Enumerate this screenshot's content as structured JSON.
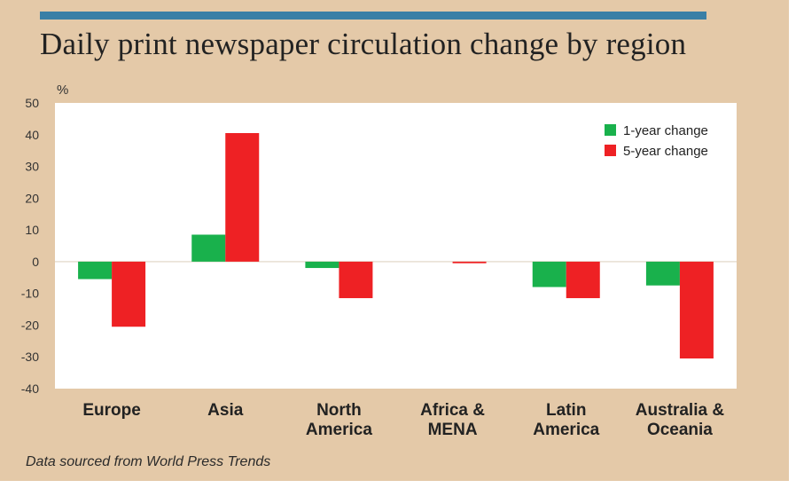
{
  "header": {
    "title": "Daily print newspaper circulation change by region"
  },
  "footer": {
    "source": "Data sourced from World Press Trends"
  },
  "colors": {
    "background": "#e4c9a8",
    "accent_bar": "#3a7fa6",
    "plot_background": "#ffffff",
    "series_1": "#19b14c",
    "series_2": "#ee2124"
  },
  "chart_data": {
    "type": "bar",
    "title": "Daily print newspaper circulation change by region",
    "xlabel": "",
    "ylabel": "%",
    "ylim": [
      -40,
      50
    ],
    "yticks": [
      50,
      40,
      30,
      20,
      10,
      0,
      -10,
      -20,
      -30,
      -40
    ],
    "grid": false,
    "legend_position": "top-right",
    "categories": [
      [
        "Europe"
      ],
      [
        "Asia"
      ],
      [
        "North",
        "America"
      ],
      [
        "Africa &",
        "MENA"
      ],
      [
        "Latin",
        "America"
      ],
      [
        "Australia &",
        "Oceania"
      ]
    ],
    "series": [
      {
        "name": "1-year change",
        "color": "#19b14c",
        "values": [
          -5.5,
          8.5,
          -2.0,
          0.0,
          -8.0,
          -7.5
        ]
      },
      {
        "name": "5-year change",
        "color": "#ee2124",
        "values": [
          -20.5,
          40.5,
          -11.5,
          -0.5,
          -11.5,
          -30.5
        ]
      }
    ]
  }
}
